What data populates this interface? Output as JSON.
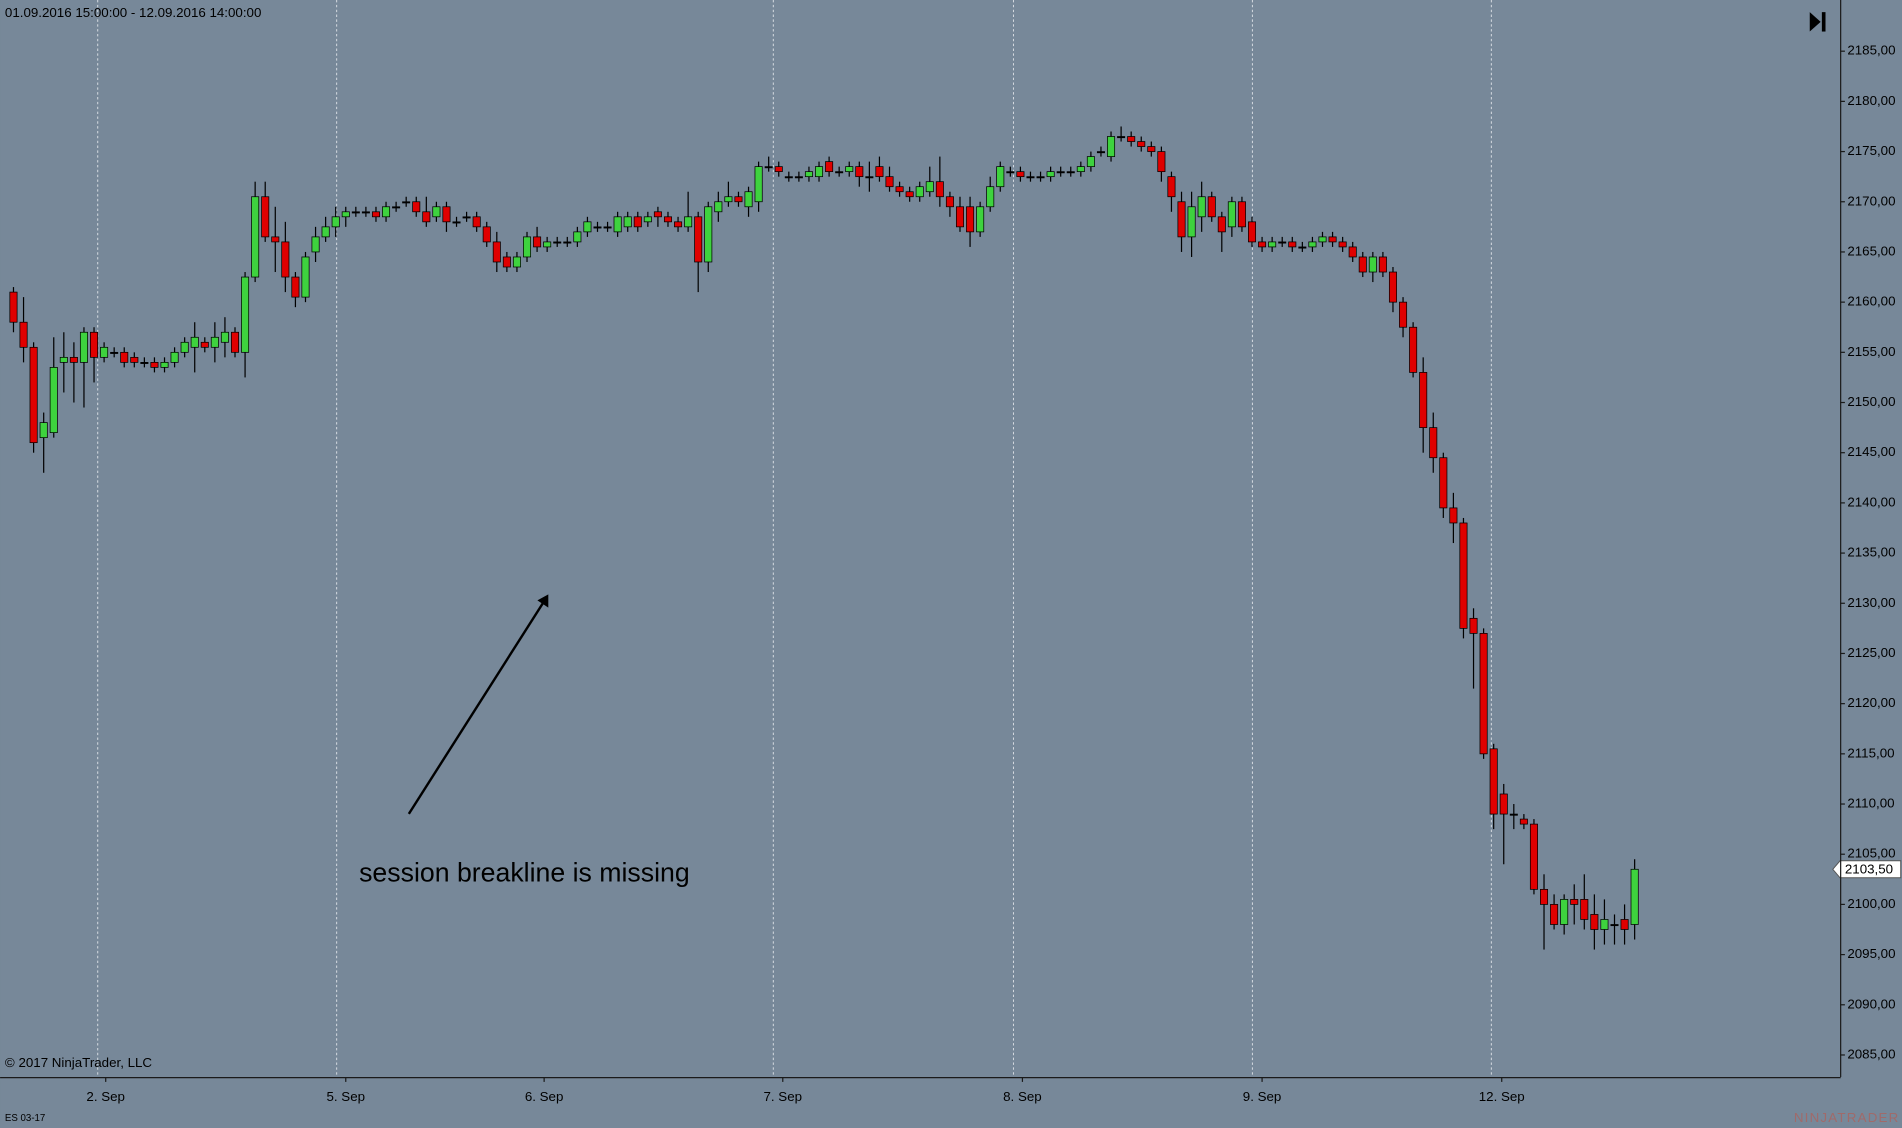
{
  "chart_data": {
    "type": "candlestick",
    "range_label": "01.09.2016 15:00:00 - 12.09.2016 14:00:00",
    "copyright": "© 2017 NinjaTrader, LLC",
    "instrument": "ES 03-17",
    "watermark": "NINJATRADER",
    "annotation": "session breakline is missing",
    "up_color": "#3ed23e",
    "down_color": "#e00000",
    "background": "#778899",
    "xlim": [
      -1.33,
      181.4
    ],
    "xticks": [
      {
        "value": 9.16,
        "label": "2. Sep"
      },
      {
        "value": 33.0,
        "label": "5. Sep"
      },
      {
        "value": 52.7,
        "label": "6. Sep"
      },
      {
        "value": 76.4,
        "label": "7. Sep"
      },
      {
        "value": 100.2,
        "label": "8. Sep"
      },
      {
        "value": 124.0,
        "label": "9. Sep"
      },
      {
        "value": 147.8,
        "label": "12. Sep"
      }
    ],
    "session_breaks": [
      8.3,
      32.0,
      75.4,
      99.2,
      123.0,
      146.7
    ],
    "ylim": [
      2082.8,
      2190.1
    ],
    "yticks": [
      {
        "value": 2085,
        "label": "2085,00"
      },
      {
        "value": 2090,
        "label": "2090,00"
      },
      {
        "value": 2095,
        "label": "2095,00"
      },
      {
        "value": 2100,
        "label": "2100,00"
      },
      {
        "value": 2105,
        "label": "2105,00"
      },
      {
        "value": 2110,
        "label": "2110,00"
      },
      {
        "value": 2115,
        "label": "2115,00"
      },
      {
        "value": 2120,
        "label": "2120,00"
      },
      {
        "value": 2125,
        "label": "2125,00"
      },
      {
        "value": 2130,
        "label": "2130,00"
      },
      {
        "value": 2135,
        "label": "2135,00"
      },
      {
        "value": 2140,
        "label": "2140,00"
      },
      {
        "value": 2145,
        "label": "2145,00"
      },
      {
        "value": 2150,
        "label": "2150,00"
      },
      {
        "value": 2155,
        "label": "2155,00"
      },
      {
        "value": 2160,
        "label": "2160,00"
      },
      {
        "value": 2165,
        "label": "2165,00"
      },
      {
        "value": 2170,
        "label": "2170,00"
      },
      {
        "value": 2175,
        "label": "2175,00"
      },
      {
        "value": 2180,
        "label": "2180,00"
      },
      {
        "value": 2185,
        "label": "2185,00"
      }
    ],
    "last_price": {
      "value": 2103.5,
      "label": "2103,50"
    },
    "open": [
      2161,
      2158,
      2155.5,
      2146.5,
      2147,
      2154,
      2154.5,
      2154,
      2157,
      2154.5,
      2155,
      2155,
      2154.5,
      2154,
      2154,
      2153.5,
      2154,
      2155,
      2155.5,
      2156,
      2155.5,
      2156,
      2157,
      2155,
      2162.5,
      2170.5,
      2166.5,
      2166,
      2162.5,
      2160.5,
      2165,
      2166.5,
      2167.5,
      2168.5,
      2169,
      2169,
      2169,
      2168.5,
      2169.5,
      2170,
      2170,
      2169,
      2168.5,
      2169.5,
      2168,
      2168.5,
      2168.5,
      2167.5,
      2166,
      2164.5,
      2163.5,
      2164.5,
      2166.5,
      2165.5,
      2166,
      2166,
      2166,
      2167,
      2167.5,
      2167.5,
      2167,
      2167.5,
      2168.5,
      2168,
      2169,
      2168.5,
      2168,
      2167.5,
      2168.5,
      2164,
      2169,
      2170,
      2170.5,
      2169.5,
      2170,
      2173.5,
      2173.5,
      2172.5,
      2172.5,
      2172.5,
      2172.5,
      2174,
      2173,
      2173,
      2173.5,
      2172.5,
      2173.5,
      2172.5,
      2171.5,
      2171,
      2170.5,
      2171,
      2172,
      2170.5,
      2169.5,
      2169.5,
      2167,
      2169.5,
      2171.5,
      2173,
      2173,
      2172.5,
      2172.5,
      2172.5,
      2173,
      2173,
      2173,
      2173.5,
      2175,
      2174.5,
      2176.5,
      2176.5,
      2176,
      2175.5,
      2175,
      2172.5,
      2170,
      2166.5,
      2168.5,
      2170.5,
      2168.5,
      2167.5,
      2170,
      2168,
      2166,
      2165.5,
      2166,
      2166,
      2165.5,
      2165.5,
      2166,
      2166.5,
      2166,
      2165.5,
      2164.5,
      2163,
      2164.5,
      2163,
      2160,
      2157.5,
      2153,
      2147.5,
      2144.5,
      2139.5,
      2138,
      2128.5,
      2127,
      2115.5,
      2111,
      2109,
      2108.5,
      2108,
      2101.5,
      2100,
      2098,
      2100.5,
      2100.5,
      2099,
      2097.5,
      2098,
      2098.5,
      2098
    ],
    "high": [
      2161.5,
      2160.5,
      2156,
      2149,
      2156.5,
      2157,
      2156,
      2157.5,
      2157.5,
      2156,
      2155.5,
      2155.5,
      2155,
      2154.5,
      2154.5,
      2154.5,
      2155.5,
      2156.5,
      2158,
      2156.5,
      2158,
      2158.5,
      2157.5,
      2163,
      2172,
      2172,
      2169.5,
      2168,
      2163,
      2165,
      2167.5,
      2168.5,
      2169.5,
      2169.5,
      2169.5,
      2169.5,
      2169.5,
      2170,
      2170,
      2170.5,
      2170.5,
      2170.5,
      2170,
      2170,
      2168.5,
      2169,
      2169,
      2168,
      2167,
      2165,
      2165,
      2167,
      2167.5,
      2166.5,
      2166.5,
      2166.5,
      2167.5,
      2168.5,
      2168,
      2168,
      2169,
      2169,
      2169,
      2169,
      2169.5,
      2169,
      2168.5,
      2171,
      2169,
      2170,
      2171,
      2172,
      2171,
      2171.5,
      2174,
      2174.5,
      2174,
      2173,
      2173,
      2173.5,
      2174,
      2174.5,
      2173.5,
      2174,
      2174,
      2174,
      2174.5,
      2173.5,
      2172,
      2171.5,
      2172,
      2173.5,
      2174.5,
      2171,
      2170.5,
      2170.5,
      2170,
      2172.5,
      2174,
      2173.5,
      2173.5,
      2173,
      2173,
      2173.5,
      2173.5,
      2173.5,
      2174,
      2175,
      2175.5,
      2177,
      2177.5,
      2177,
      2176.5,
      2176,
      2175.5,
      2173,
      2171,
      2171,
      2172,
      2171,
      2169,
      2170.5,
      2170.5,
      2168.5,
      2166.5,
      2166.5,
      2166.5,
      2166.5,
      2166,
      2166.5,
      2167,
      2167,
      2166.5,
      2166,
      2165,
      2165,
      2165,
      2163.5,
      2160.5,
      2158,
      2154.5,
      2149,
      2145,
      2141,
      2138.5,
      2129.5,
      2127.5,
      2116,
      2112,
      2110,
      2109,
      2108.5,
      2103,
      2101,
      2101,
      2102,
      2103,
      2101,
      2100.5,
      2099,
      2100,
      2104.5
    ],
    "low": [
      2157,
      2154,
      2145,
      2143,
      2146.5,
      2151,
      2150,
      2149.5,
      2152,
      2154,
      2154.5,
      2153.5,
      2153.5,
      2153.5,
      2153,
      2153,
      2153.5,
      2154.5,
      2153,
      2155,
      2154,
      2154.5,
      2154.5,
      2152.5,
      2162,
      2166,
      2163,
      2161,
      2159.5,
      2160,
      2164,
      2166,
      2166.5,
      2167.5,
      2168.5,
      2168.5,
      2168,
      2168,
      2169,
      2169.5,
      2168.5,
      2167.5,
      2168,
      2167,
      2167.5,
      2168,
      2167,
      2165.5,
      2163,
      2163,
      2163,
      2164,
      2165,
      2165,
      2165.5,
      2165.5,
      2165.5,
      2166.5,
      2167,
      2167,
      2166.5,
      2167,
      2167,
      2167.5,
      2167.5,
      2167.5,
      2167,
      2167,
      2161,
      2163,
      2168,
      2169.5,
      2169.5,
      2168.5,
      2169,
      2173,
      2172.5,
      2172,
      2172,
      2172,
      2172,
      2172.5,
      2172.5,
      2172.5,
      2171.5,
      2171,
      2172,
      2171,
      2170.5,
      2170,
      2170,
      2170.5,
      2169.5,
      2168.5,
      2167,
      2165.5,
      2166.5,
      2169,
      2171,
      2172.5,
      2172,
      2172,
      2172,
      2172,
      2172.5,
      2172.5,
      2172.5,
      2173,
      2174.5,
      2174,
      2176,
      2175.5,
      2175,
      2174.5,
      2172,
      2169,
      2165,
      2164.5,
      2167,
      2168,
      2165,
      2166.5,
      2167,
      2165.5,
      2165,
      2165,
      2165.5,
      2165,
      2165,
      2165,
      2165.5,
      2165.5,
      2165,
      2164,
      2162.5,
      2162,
      2162.5,
      2159,
      2156.5,
      2152.5,
      2145,
      2143,
      2138.5,
      2136,
      2126.5,
      2121.5,
      2114.5,
      2107.5,
      2104,
      2107.5,
      2107.5,
      2101,
      2095.5,
      2097.5,
      2097,
      2098,
      2097.5,
      2095.5,
      2096,
      2096,
      2096,
      2096.5
    ],
    "close": [
      2158,
      2155.5,
      2146,
      2148,
      2153.5,
      2154.5,
      2154,
      2157,
      2154.5,
      2155.5,
      2155,
      2154,
      2154,
      2154,
      2153.5,
      2154,
      2155,
      2156,
      2156.5,
      2155.5,
      2156.5,
      2157,
      2155,
      2162.5,
      2170.5,
      2166.5,
      2166,
      2162.5,
      2160.5,
      2164.5,
      2166.5,
      2167.5,
      2168.5,
      2169,
      2169,
      2169,
      2168.5,
      2169.5,
      2169.5,
      2170,
      2169,
      2168,
      2169.5,
      2168,
      2168,
      2168.5,
      2167.5,
      2166,
      2164,
      2163.5,
      2164.5,
      2166.5,
      2165.5,
      2166,
      2166,
      2166,
      2167,
      2168,
      2167.5,
      2167.5,
      2168.5,
      2168.5,
      2167.5,
      2168.5,
      2168.5,
      2168,
      2167.5,
      2168.5,
      2164,
      2169.5,
      2170,
      2170.5,
      2170,
      2171,
      2173.5,
      2173.5,
      2173,
      2172.5,
      2172.5,
      2173,
      2173.5,
      2173,
      2173,
      2173.5,
      2172.5,
      2172.5,
      2172.5,
      2171.5,
      2171,
      2170.5,
      2171.5,
      2172,
      2170.5,
      2169.5,
      2167.5,
      2167,
      2169.5,
      2171.5,
      2173.5,
      2173,
      2172.5,
      2172.5,
      2172.5,
      2173,
      2173,
      2173,
      2173.5,
      2174.5,
      2175,
      2176.5,
      2176.5,
      2176,
      2175.5,
      2175,
      2173,
      2170.5,
      2166.5,
      2169.5,
      2170.5,
      2168.5,
      2167,
      2170,
      2167.5,
      2166,
      2165.5,
      2166,
      2166,
      2165.5,
      2165.5,
      2166,
      2166.5,
      2166,
      2165.5,
      2164.5,
      2163,
      2164.5,
      2163,
      2160,
      2157.5,
      2153,
      2147.5,
      2144.5,
      2139.5,
      2138,
      2127.5,
      2127,
      2115,
      2109,
      2109,
      2109,
      2108,
      2101.5,
      2100,
      2098,
      2100.5,
      2100,
      2098.5,
      2097.5,
      2098.5,
      2098,
      2097.5,
      2103.5
    ]
  }
}
